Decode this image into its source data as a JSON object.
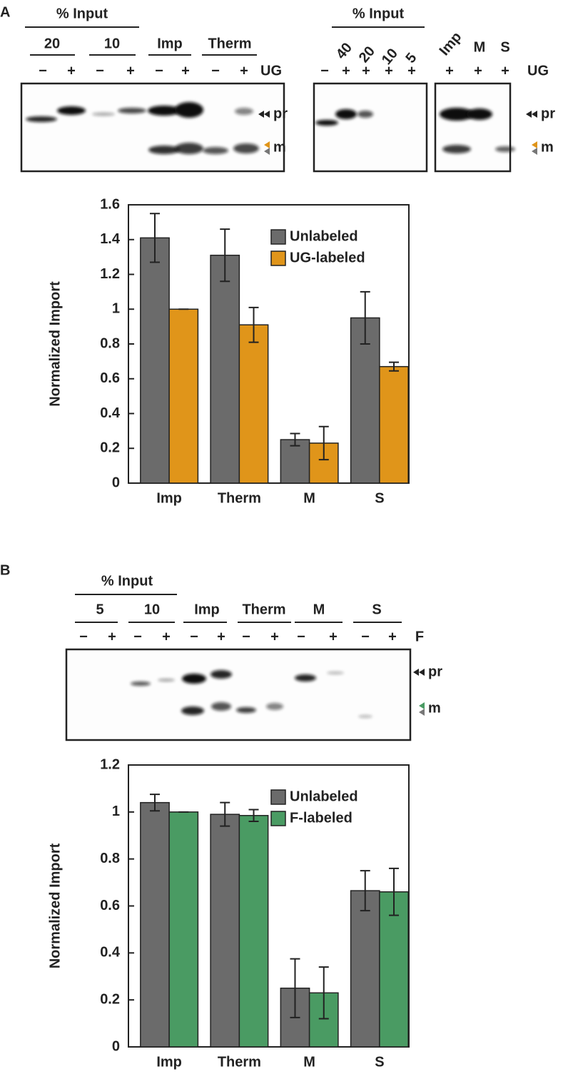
{
  "panels": [
    "A",
    "B"
  ],
  "gels": [
    {
      "header": "% Input",
      "groups": [
        "20",
        "10",
        "Imp",
        "Therm"
      ],
      "signs": [
        "−",
        "+",
        "−",
        "+",
        "−",
        "+",
        "−",
        "+"
      ],
      "lane_label": "UG",
      "markers": [
        "pr",
        "m"
      ]
    },
    {
      "header": "% Input",
      "groups": [
        "40",
        "20",
        "10",
        "5",
        "Imp",
        "M",
        "S"
      ],
      "signs": [
        "−",
        "+",
        "+",
        "+",
        "+",
        "+",
        "+",
        "+"
      ],
      "lane_label": "UG",
      "markers": [
        "pr",
        "m"
      ]
    },
    {
      "header": "% Input",
      "groups": [
        "5",
        "10",
        "Imp",
        "Therm",
        "M",
        "S"
      ],
      "signs": [
        "−",
        "+",
        "−",
        "+",
        "−",
        "+",
        "−",
        "+",
        "−",
        "+",
        "−",
        "+"
      ],
      "lane_label": "F",
      "markers": [
        "pr",
        "m"
      ]
    }
  ],
  "chart_data": [
    {
      "type": "bar",
      "ylabel": "Normalized Import",
      "categories": [
        "Imp",
        "Therm",
        "M",
        "S"
      ],
      "series": [
        {
          "name": "Unlabeled",
          "color": "#6b6b6b",
          "values": [
            1.41,
            1.31,
            0.25,
            0.95
          ],
          "errors": [
            0.14,
            0.15,
            0.035,
            0.15
          ]
        },
        {
          "name": "UG-labeled",
          "color": "#e0951a",
          "values": [
            1.0,
            0.91,
            0.23,
            0.67
          ],
          "errors": [
            0,
            0.1,
            0.095,
            0.025
          ]
        }
      ],
      "ylim": [
        0,
        1.6
      ],
      "yticks": [
        0,
        0.2,
        0.4,
        0.6,
        0.8,
        1,
        1.2,
        1.4,
        1.6
      ],
      "legend": "upper right"
    },
    {
      "type": "bar",
      "ylabel": "Normalized Import",
      "categories": [
        "Imp",
        "Therm",
        "M",
        "S"
      ],
      "series": [
        {
          "name": "Unlabeled",
          "color": "#6b6b6b",
          "values": [
            1.04,
            0.99,
            0.25,
            0.665
          ],
          "errors": [
            0.035,
            0.05,
            0.125,
            0.085
          ]
        },
        {
          "name": "F-labeled",
          "color": "#4a9b63",
          "values": [
            1.0,
            0.985,
            0.23,
            0.66
          ],
          "errors": [
            0,
            0.025,
            0.11,
            0.1
          ]
        }
      ],
      "ylim": [
        0,
        1.2
      ],
      "yticks": [
        0,
        0.2,
        0.4,
        0.6,
        0.8,
        1,
        1.2
      ],
      "legend": "upper right"
    }
  ]
}
